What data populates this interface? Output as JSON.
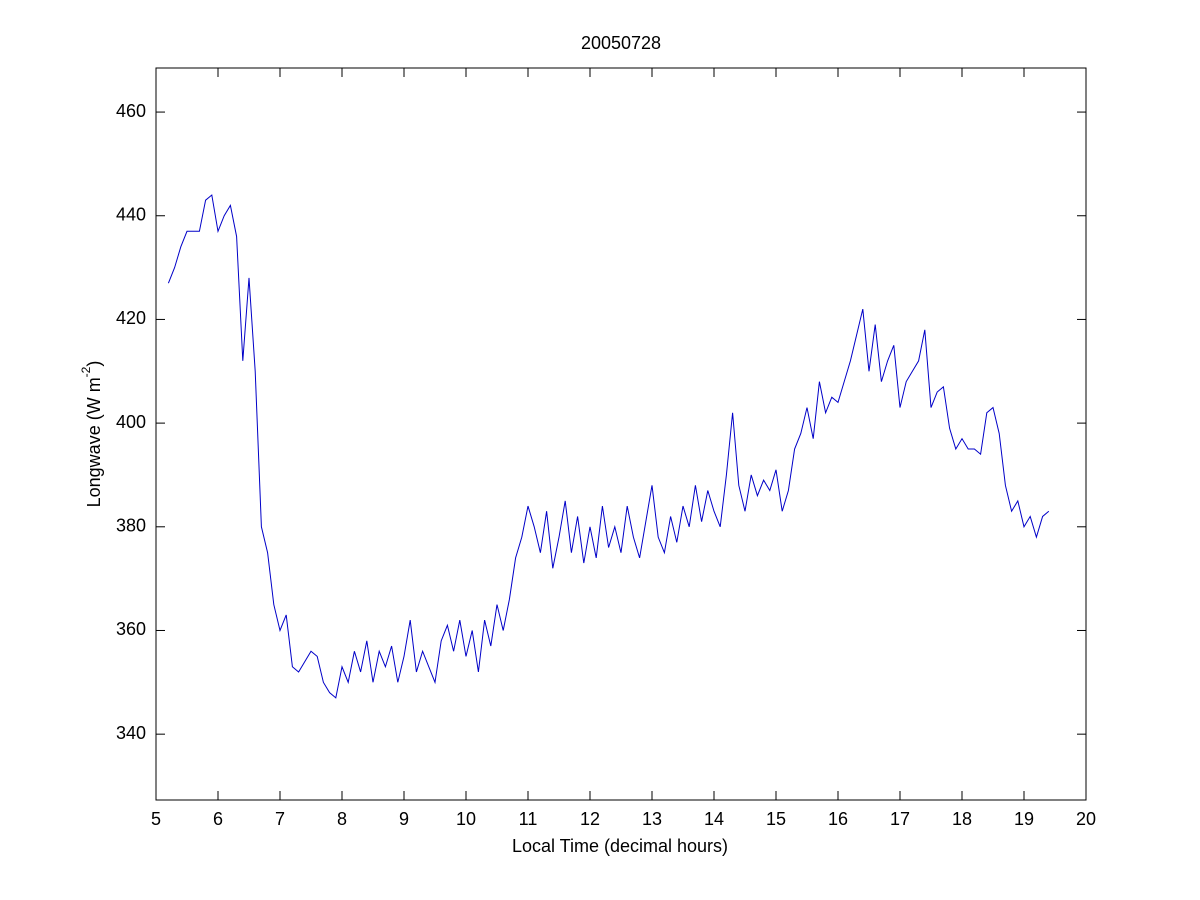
{
  "chart_data": {
    "type": "line",
    "title": "20050728",
    "x_label": "Local Time (decimal hours)",
    "y_label": [
      "Longwave (W m",
      "-2",
      ")"
    ],
    "xlim": [
      5,
      20
    ],
    "xticks": [
      5,
      6,
      7,
      8,
      9,
      10,
      11,
      12,
      13,
      14,
      15,
      16,
      17,
      18,
      19,
      20
    ],
    "ylim": [
      327.3,
      468.5
    ],
    "yticks": [
      340,
      360,
      380,
      400,
      420,
      440,
      460
    ],
    "x": [
      5.2,
      5.3,
      5.4,
      5.5,
      5.6,
      5.7,
      5.8,
      5.9,
      6.0,
      6.1,
      6.2,
      6.3,
      6.4,
      6.5,
      6.6,
      6.7,
      6.8,
      6.9,
      7.0,
      7.1,
      7.2,
      7.3,
      7.4,
      7.5,
      7.6,
      7.7,
      7.8,
      7.9,
      8.0,
      8.1,
      8.2,
      8.3,
      8.4,
      8.5,
      8.6,
      8.7,
      8.8,
      8.9,
      9.0,
      9.1,
      9.2,
      9.3,
      9.4,
      9.5,
      9.6,
      9.7,
      9.8,
      9.9,
      10.0,
      10.1,
      10.2,
      10.3,
      10.4,
      10.5,
      10.6,
      10.7,
      10.8,
      10.9,
      11.0,
      11.1,
      11.2,
      11.3,
      11.4,
      11.5,
      11.6,
      11.7,
      11.8,
      11.9,
      12.0,
      12.1,
      12.2,
      12.3,
      12.4,
      12.5,
      12.6,
      12.7,
      12.8,
      12.9,
      13.0,
      13.1,
      13.2,
      13.3,
      13.4,
      13.5,
      13.6,
      13.7,
      13.8,
      13.9,
      14.0,
      14.1,
      14.2,
      14.3,
      14.4,
      14.5,
      14.6,
      14.7,
      14.8,
      14.9,
      15.0,
      15.1,
      15.2,
      15.3,
      15.4,
      15.5,
      15.6,
      15.7,
      15.8,
      15.9,
      16.0,
      16.1,
      16.2,
      16.3,
      16.4,
      16.5,
      16.6,
      16.7,
      16.8,
      16.9,
      17.0,
      17.1,
      17.2,
      17.3,
      17.4,
      17.5,
      17.6,
      17.7,
      17.8,
      17.9,
      18.0,
      18.1,
      18.2,
      18.3,
      18.4,
      18.5,
      18.6,
      18.7,
      18.8,
      18.9,
      19.0,
      19.1,
      19.2,
      19.3,
      19.4
    ],
    "series": [
      {
        "color": "#0000c8",
        "values": [
          427,
          430,
          434,
          437,
          437,
          437,
          443,
          444,
          437,
          440,
          442,
          436,
          412,
          428,
          410,
          380,
          375,
          365,
          360,
          363,
          353,
          352,
          354,
          356,
          355,
          350,
          348,
          347,
          353,
          350,
          356,
          352,
          358,
          350,
          356,
          353,
          357,
          350,
          355,
          362,
          352,
          356,
          353,
          350,
          358,
          361,
          356,
          362,
          355,
          360,
          352,
          362,
          357,
          365,
          360,
          366,
          374,
          378,
          384,
          380,
          375,
          383,
          372,
          378,
          385,
          375,
          382,
          373,
          380,
          374,
          384,
          376,
          380,
          375,
          384,
          378,
          374,
          381,
          388,
          378,
          375,
          382,
          377,
          384,
          380,
          388,
          381,
          387,
          383,
          380,
          390,
          402,
          388,
          383,
          390,
          386,
          389,
          387,
          391,
          383,
          387,
          395,
          398,
          403,
          397,
          408,
          402,
          405,
          404,
          408,
          412,
          417,
          422,
          410,
          419,
          408,
          412,
          415,
          403,
          408,
          410,
          412,
          418,
          403,
          406,
          407,
          399,
          395,
          397,
          395,
          395,
          394,
          402,
          403,
          398,
          388,
          383,
          385,
          380,
          382,
          378,
          382,
          383
        ]
      }
    ]
  }
}
